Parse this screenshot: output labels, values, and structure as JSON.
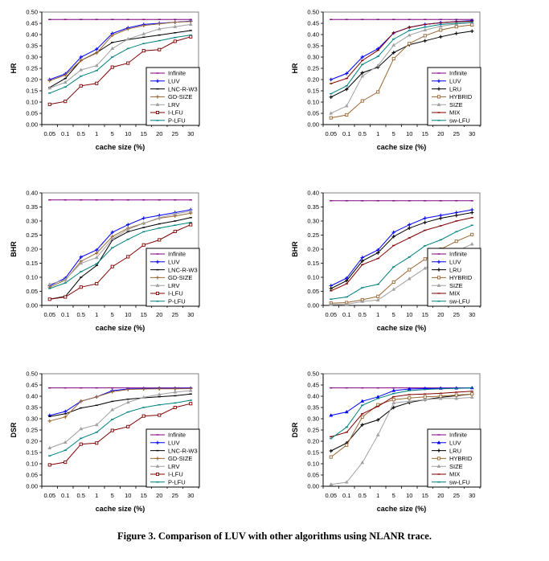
{
  "caption": "Figure 3. Comparison of LUV with other algorithms using NLANR trace.",
  "chart_data": [
    {
      "type": "line",
      "id": "hr-left",
      "title": "",
      "xlabel": "cache size (%)",
      "ylabel": "HR",
      "categories": [
        "0.05",
        "0.1",
        "0.5",
        "1",
        "5",
        "10",
        "15",
        "20",
        "25",
        "30"
      ],
      "ylim": [
        0,
        0.5
      ],
      "yticks": [
        "0.00",
        "0.05",
        "0.10",
        "0.15",
        "0.20",
        "0.25",
        "0.30",
        "0.35",
        "0.40",
        "0.45",
        "0.50"
      ],
      "legend": "bottom-right",
      "series": [
        {
          "name": "Infinite",
          "color": "#800080",
          "marker": "dash",
          "values": [
            0.467,
            0.467,
            0.467,
            0.467,
            0.467,
            0.467,
            0.467,
            0.467,
            0.467,
            0.467
          ]
        },
        {
          "name": "LUV",
          "color": "#0000ff",
          "marker": "plus",
          "values": [
            0.2,
            0.225,
            0.3,
            0.335,
            0.405,
            0.43,
            0.445,
            0.45,
            0.455,
            0.46
          ]
        },
        {
          "name": "LNC-R-W3",
          "color": "#000000",
          "marker": "dash",
          "values": [
            0.165,
            0.205,
            0.285,
            0.32,
            0.365,
            0.378,
            0.388,
            0.398,
            0.408,
            0.418
          ]
        },
        {
          "name": "GD-SIZE",
          "color": "#996633",
          "marker": "plus",
          "values": [
            0.195,
            0.22,
            0.285,
            0.318,
            0.397,
            0.425,
            0.44,
            0.448,
            0.455,
            0.458
          ]
        },
        {
          "name": "LRV",
          "color": "#a0a0a0",
          "marker": "triangle",
          "values": [
            0.162,
            0.188,
            0.243,
            0.262,
            0.338,
            0.38,
            0.403,
            0.425,
            0.435,
            0.445
          ]
        },
        {
          "name": "I-LFU",
          "color": "#800000",
          "marker": "square",
          "values": [
            0.09,
            0.103,
            0.172,
            0.183,
            0.255,
            0.273,
            0.328,
            0.333,
            0.37,
            0.39
          ]
        },
        {
          "name": "P-LFU",
          "color": "#008080",
          "marker": "dash",
          "values": [
            0.14,
            0.167,
            0.215,
            0.24,
            0.3,
            0.338,
            0.36,
            0.373,
            0.387,
            0.398
          ]
        }
      ]
    },
    {
      "type": "line",
      "id": "hr-right",
      "title": "",
      "xlabel": "cache size (%)",
      "ylabel": "HR",
      "categories": [
        "0.05",
        "0.1",
        "0.5",
        "1",
        "5",
        "10",
        "15",
        "20",
        "25",
        "30"
      ],
      "ylim": [
        0,
        0.5
      ],
      "yticks": [
        "0.00",
        "0.05",
        "0.10",
        "0.15",
        "0.20",
        "0.25",
        "0.30",
        "0.35",
        "0.40",
        "0.45",
        "0.50"
      ],
      "legend": "bottom-right",
      "series": [
        {
          "name": "Infinite",
          "color": "#800080",
          "marker": "dash",
          "values": [
            0.467,
            0.467,
            0.467,
            0.467,
            0.467,
            0.467,
            0.467,
            0.467,
            0.467,
            0.467
          ]
        },
        {
          "name": "LUV",
          "color": "#0000ff",
          "marker": "plus",
          "values": [
            0.2,
            0.227,
            0.3,
            0.337,
            0.407,
            0.432,
            0.445,
            0.453,
            0.458,
            0.462
          ]
        },
        {
          "name": "LRU",
          "color": "#000000",
          "marker": "plus",
          "values": [
            0.122,
            0.157,
            0.23,
            0.255,
            0.32,
            0.355,
            0.372,
            0.39,
            0.405,
            0.415
          ]
        },
        {
          "name": "HYBRID",
          "color": "#996633",
          "marker": "square",
          "values": [
            0.03,
            0.043,
            0.105,
            0.145,
            0.293,
            0.36,
            0.395,
            0.42,
            0.435,
            0.443
          ]
        },
        {
          "name": "SIZE",
          "color": "#a0a0a0",
          "marker": "triangle",
          "values": [
            0.05,
            0.083,
            0.215,
            0.262,
            0.353,
            0.397,
            0.42,
            0.437,
            0.447,
            0.452
          ]
        },
        {
          "name": "MIX",
          "color": "#800000",
          "marker": "dash",
          "values": [
            0.182,
            0.205,
            0.285,
            0.33,
            0.408,
            0.432,
            0.445,
            0.452,
            0.457,
            0.46
          ]
        },
        {
          "name": "sw-LFU",
          "color": "#008080",
          "marker": "dash",
          "values": [
            0.137,
            0.172,
            0.267,
            0.303,
            0.38,
            0.418,
            0.433,
            0.445,
            0.45,
            0.455
          ]
        }
      ]
    },
    {
      "type": "line",
      "id": "bhr-left",
      "title": "",
      "xlabel": "cache size (%)",
      "ylabel": "BHR",
      "categories": [
        "0.05",
        "0.1",
        "0.5",
        "1",
        "5",
        "10",
        "15",
        "20",
        "25",
        "30"
      ],
      "ylim": [
        0,
        0.4
      ],
      "yticks": [
        "0.00",
        "0.05",
        "0.10",
        "0.15",
        "0.20",
        "0.25",
        "0.30",
        "0.35",
        "0.40"
      ],
      "legend": "bottom-right",
      "series": [
        {
          "name": "Infinite",
          "color": "#800080",
          "marker": "dash",
          "values": [
            0.375,
            0.375,
            0.375,
            0.375,
            0.375,
            0.375,
            0.375,
            0.375,
            0.375,
            0.375
          ]
        },
        {
          "name": "LUV",
          "color": "#0000ff",
          "marker": "plus",
          "values": [
            0.07,
            0.097,
            0.172,
            0.197,
            0.26,
            0.287,
            0.31,
            0.32,
            0.33,
            0.34
          ]
        },
        {
          "name": "LNC-R-W3",
          "color": "#000000",
          "marker": "dash",
          "values": [
            0.022,
            0.032,
            0.1,
            0.142,
            0.232,
            0.262,
            0.277,
            0.29,
            0.3,
            0.312
          ]
        },
        {
          "name": "GD-SIZE",
          "color": "#996633",
          "marker": "plus",
          "values": [
            0.065,
            0.09,
            0.157,
            0.186,
            0.245,
            0.275,
            0.292,
            0.31,
            0.318,
            0.328
          ]
        },
        {
          "name": "LRV",
          "color": "#a0a0a0",
          "marker": "triangle",
          "values": [
            0.075,
            0.092,
            0.15,
            0.17,
            0.237,
            0.27,
            0.292,
            0.312,
            0.325,
            0.335
          ]
        },
        {
          "name": "I-LFU",
          "color": "#800000",
          "marker": "square",
          "values": [
            0.022,
            0.03,
            0.065,
            0.077,
            0.138,
            0.173,
            0.215,
            0.233,
            0.263,
            0.287
          ]
        },
        {
          "name": "P-LFU",
          "color": "#008080",
          "marker": "dash",
          "values": [
            0.06,
            0.08,
            0.12,
            0.148,
            0.205,
            0.235,
            0.262,
            0.275,
            0.285,
            0.295
          ]
        }
      ]
    },
    {
      "type": "line",
      "id": "bhr-right",
      "title": "",
      "xlabel": "cache size (%)",
      "ylabel": "BHR",
      "categories": [
        "0.05",
        "0.1",
        "0.5",
        "1",
        "5",
        "10",
        "15",
        "20",
        "25",
        "30"
      ],
      "ylim": [
        0,
        0.4
      ],
      "yticks": [
        "0.00",
        "0.05",
        "0.10",
        "0.15",
        "0.20",
        "0.25",
        "0.30",
        "0.35",
        "0.40"
      ],
      "legend": "bottom-right",
      "series": [
        {
          "name": "Infinite",
          "color": "#800080",
          "marker": "dash",
          "values": [
            0.372,
            0.372,
            0.372,
            0.372,
            0.372,
            0.372,
            0.372,
            0.372,
            0.372,
            0.372
          ]
        },
        {
          "name": "LUV",
          "color": "#0000ff",
          "marker": "plus",
          "values": [
            0.07,
            0.097,
            0.17,
            0.197,
            0.26,
            0.287,
            0.31,
            0.32,
            0.33,
            0.34
          ]
        },
        {
          "name": "LRU",
          "color": "#000000",
          "marker": "plus",
          "values": [
            0.06,
            0.088,
            0.158,
            0.187,
            0.245,
            0.275,
            0.295,
            0.31,
            0.32,
            0.33
          ]
        },
        {
          "name": "HYBRID",
          "color": "#996633",
          "marker": "square",
          "values": [
            0.008,
            0.01,
            0.02,
            0.032,
            0.083,
            0.127,
            0.165,
            0.2,
            0.228,
            0.252
          ]
        },
        {
          "name": "SIZE",
          "color": "#a0a0a0",
          "marker": "triangle",
          "values": [
            0.003,
            0.004,
            0.014,
            0.019,
            0.057,
            0.095,
            0.132,
            0.163,
            0.193,
            0.218
          ]
        },
        {
          "name": "MIX",
          "color": "#800000",
          "marker": "dash",
          "values": [
            0.052,
            0.077,
            0.145,
            0.167,
            0.213,
            0.24,
            0.267,
            0.283,
            0.3,
            0.312
          ]
        },
        {
          "name": "sw-LFU",
          "color": "#008080",
          "marker": "dash",
          "values": [
            0.022,
            0.03,
            0.063,
            0.075,
            0.137,
            0.172,
            0.212,
            0.233,
            0.262,
            0.285
          ]
        }
      ]
    },
    {
      "type": "line",
      "id": "dsr-left",
      "title": "",
      "xlabel": "cache size (%)",
      "ylabel": "DSR",
      "categories": [
        "0.05",
        "0.1",
        "0.5",
        "1",
        "5",
        "10",
        "15",
        "20",
        "25",
        "30"
      ],
      "ylim": [
        0,
        0.5
      ],
      "yticks": [
        "0.00",
        "0.05",
        "0.10",
        "0.15",
        "0.20",
        "0.25",
        "0.30",
        "0.35",
        "0.40",
        "0.45",
        "0.50"
      ],
      "legend": "bottom-right",
      "series": [
        {
          "name": "Infinite",
          "color": "#800080",
          "marker": "dash",
          "values": [
            0.437,
            0.437,
            0.437,
            0.437,
            0.437,
            0.437,
            0.437,
            0.437,
            0.437,
            0.437
          ]
        },
        {
          "name": "LUV",
          "color": "#0000ff",
          "marker": "plus",
          "values": [
            0.315,
            0.332,
            0.378,
            0.397,
            0.425,
            0.432,
            0.434,
            0.435,
            0.435,
            0.436
          ]
        },
        {
          "name": "LNC-R-W3",
          "color": "#000000",
          "marker": "dash",
          "values": [
            0.31,
            0.322,
            0.348,
            0.36,
            0.377,
            0.387,
            0.393,
            0.398,
            0.402,
            0.41
          ]
        },
        {
          "name": "GD-SIZE",
          "color": "#996633",
          "marker": "plus",
          "values": [
            0.29,
            0.308,
            0.378,
            0.397,
            0.42,
            0.43,
            0.432,
            0.433,
            0.433,
            0.434
          ]
        },
        {
          "name": "LRV",
          "color": "#a0a0a0",
          "marker": "triangle",
          "values": [
            0.17,
            0.195,
            0.255,
            0.273,
            0.34,
            0.373,
            0.395,
            0.408,
            0.418,
            0.425
          ]
        },
        {
          "name": "I-LFU",
          "color": "#800000",
          "marker": "square",
          "values": [
            0.095,
            0.107,
            0.187,
            0.192,
            0.248,
            0.265,
            0.312,
            0.316,
            0.35,
            0.367
          ]
        },
        {
          "name": "P-LFU",
          "color": "#008080",
          "marker": "dash",
          "values": [
            0.135,
            0.16,
            0.213,
            0.24,
            0.297,
            0.33,
            0.35,
            0.362,
            0.37,
            0.382
          ]
        }
      ]
    },
    {
      "type": "line",
      "id": "dsr-right",
      "title": "",
      "xlabel": "cache size (%)",
      "ylabel": "DSR",
      "categories": [
        "0.05",
        "0.1",
        "0.5",
        "1",
        "5",
        "10",
        "15",
        "20",
        "25",
        "30"
      ],
      "ylim": [
        0,
        0.5
      ],
      "yticks": [
        "0.00",
        "0.05",
        "0.10",
        "0.15",
        "0.20",
        "0.25",
        "0.30",
        "0.35",
        "0.40",
        "0.45",
        "0.50"
      ],
      "legend": "bottom-right",
      "series": [
        {
          "name": "Infinite",
          "color": "#800080",
          "marker": "dash",
          "values": [
            0.437,
            0.437,
            0.437,
            0.437,
            0.437,
            0.437,
            0.437,
            0.437,
            0.437,
            0.437
          ]
        },
        {
          "name": "LUV",
          "color": "#0000ff",
          "marker": "triangle",
          "values": [
            0.315,
            0.33,
            0.378,
            0.397,
            0.425,
            0.432,
            0.434,
            0.435,
            0.436,
            0.437
          ]
        },
        {
          "name": "LRU",
          "color": "#000000",
          "marker": "plus",
          "values": [
            0.157,
            0.192,
            0.273,
            0.295,
            0.35,
            0.372,
            0.385,
            0.395,
            0.402,
            0.41
          ]
        },
        {
          "name": "HYBRID",
          "color": "#996633",
          "marker": "square",
          "values": [
            0.13,
            0.183,
            0.308,
            0.362,
            0.385,
            0.392,
            0.397,
            0.4,
            0.405,
            0.41
          ]
        },
        {
          "name": "SIZE",
          "color": "#a0a0a0",
          "marker": "triangle",
          "values": [
            0.008,
            0.018,
            0.105,
            0.228,
            0.37,
            0.378,
            0.385,
            0.39,
            0.39,
            0.395
          ]
        },
        {
          "name": "MIX",
          "color": "#800000",
          "marker": "dash",
          "values": [
            0.22,
            0.24,
            0.322,
            0.355,
            0.398,
            0.407,
            0.41,
            0.413,
            0.418,
            0.422
          ]
        },
        {
          "name": "sw-LFU",
          "color": "#008080",
          "marker": "dash",
          "values": [
            0.212,
            0.263,
            0.36,
            0.39,
            0.412,
            0.425,
            0.43,
            0.433,
            0.435,
            0.437
          ]
        }
      ]
    }
  ]
}
